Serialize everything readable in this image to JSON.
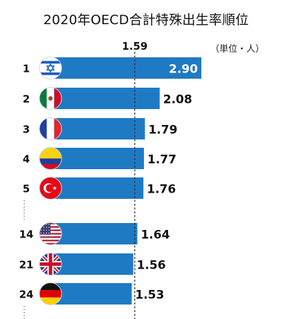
{
  "title": "2020年OECD合計特殊出生率順位",
  "unit_label": "（単位・人）",
  "chart_data": {
    "type": "bar",
    "orientation": "horizontal",
    "title": "2020年OECD合計特殊出生率順位",
    "reference_line": 1.59,
    "reference_label": "1.59",
    "xlim": [
      0,
      2.9
    ],
    "bar_color": "#1f7ac4",
    "categories": [
      "1",
      "2",
      "3",
      "4",
      "5",
      "14",
      "21",
      "24"
    ],
    "values": [
      2.9,
      2.08,
      1.79,
      1.77,
      1.76,
      1.64,
      1.56,
      1.53
    ],
    "value_labels": [
      "2.90",
      "2.08",
      "1.79",
      "1.77",
      "1.76",
      "1.64",
      "1.56",
      "1.53"
    ],
    "flags": [
      "israel-flag",
      "mexico-flag",
      "france-flag",
      "colombia-flag",
      "turkey-flag",
      "usa-flag",
      "uk-flag",
      "germany-flag"
    ],
    "gap_after_index": [
      4,
      5,
      6,
      7
    ]
  }
}
